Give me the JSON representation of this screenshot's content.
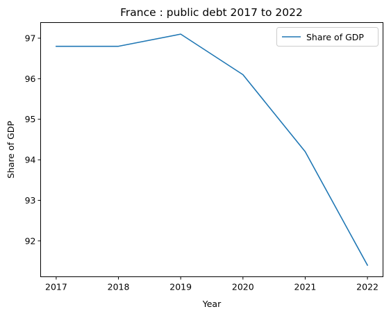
{
  "chart_data": {
    "type": "line",
    "title": "France : public debt 2017 to 2022",
    "xlabel": "Year",
    "ylabel": "Share of GDP",
    "x": [
      2017,
      2018,
      2019,
      2020,
      2021,
      2022
    ],
    "series": [
      {
        "name": "Share of GDP",
        "values": [
          96.8,
          96.8,
          97.1,
          96.1,
          94.2,
          91.4
        ],
        "color": "#1f77b4"
      }
    ],
    "xticks": [
      "2017",
      "2018",
      "2019",
      "2020",
      "2021",
      "2022"
    ],
    "yticks": [
      "92",
      "93",
      "94",
      "95",
      "96",
      "97"
    ],
    "xlim": [
      2016.75,
      2022.25
    ],
    "ylim": [
      91.115,
      97.385
    ],
    "grid": false,
    "legend": {
      "placement": "upper right",
      "entries": [
        "Share of GDP"
      ]
    }
  }
}
